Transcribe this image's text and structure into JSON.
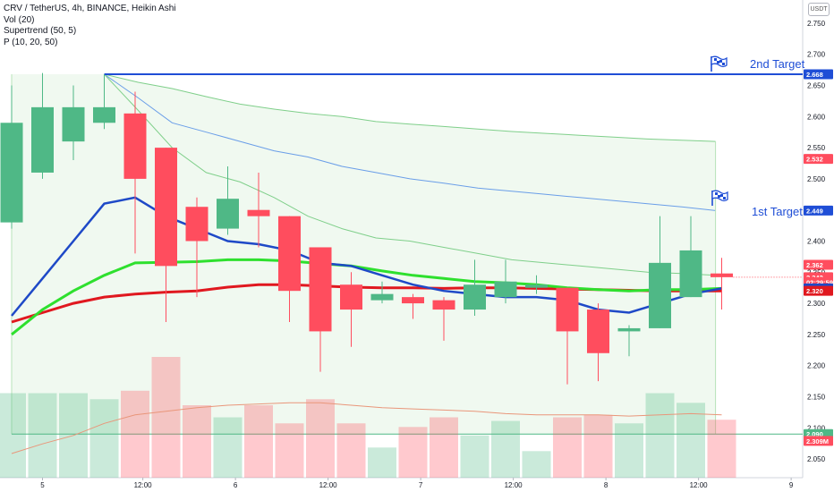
{
  "legend": {
    "line1": "CRV / TetherUS, 4h, BINANCE, Heikin Ashi",
    "line2": "Vol (20)",
    "line3": "Supertrend (50, 5)",
    "line4": "P (10, 20, 50)"
  },
  "currency_box": "USDT",
  "targets": [
    {
      "label": "2nd Target",
      "price": 2.668
    },
    {
      "label": "1st Target",
      "price": 2.449
    }
  ],
  "colors": {
    "up": "#4fb886",
    "down": "#ff4d5e",
    "blue_line": "#1e49c7",
    "green_line": "#2ee02e",
    "red_line": "#e0181f",
    "target_line": "#1f4ed6",
    "band": "#e9f6e9"
  },
  "chart_data": {
    "type": "candlestick",
    "ylim": [
      2.03,
      2.77
    ],
    "y_ticks": [
      "2.750",
      "2.700",
      "2.650",
      "2.600",
      "2.550",
      "2.500",
      "2.450",
      "2.400",
      "2.350",
      "2.300",
      "2.250",
      "2.200",
      "2.150",
      "2.100",
      "2.050"
    ],
    "x_ticks": [
      {
        "i": 1,
        "label": "5"
      },
      {
        "i": 4.25,
        "label": "12:00"
      },
      {
        "i": 7.25,
        "label": "6"
      },
      {
        "i": 10.25,
        "label": "12:00"
      },
      {
        "i": 13.25,
        "label": "7"
      },
      {
        "i": 16.25,
        "label": "12:00"
      },
      {
        "i": 19.25,
        "label": "8"
      },
      {
        "i": 22.25,
        "label": "12:00"
      },
      {
        "i": 25.25,
        "label": "9"
      }
    ],
    "candles": [
      {
        "o": 2.43,
        "h": 2.65,
        "l": 2.42,
        "c": 2.59
      },
      {
        "o": 2.51,
        "h": 2.67,
        "l": 2.5,
        "c": 2.615
      },
      {
        "o": 2.56,
        "h": 2.65,
        "l": 2.53,
        "c": 2.615
      },
      {
        "o": 2.59,
        "h": 2.668,
        "l": 2.58,
        "c": 2.615
      },
      {
        "o": 2.605,
        "h": 2.64,
        "l": 2.38,
        "c": 2.5
      },
      {
        "o": 2.55,
        "h": 2.55,
        "l": 2.27,
        "c": 2.36
      },
      {
        "o": 2.455,
        "h": 2.47,
        "l": 2.31,
        "c": 2.4
      },
      {
        "o": 2.42,
        "h": 2.52,
        "l": 2.41,
        "c": 2.468
      },
      {
        "o": 2.45,
        "h": 2.51,
        "l": 2.39,
        "c": 2.44
      },
      {
        "o": 2.44,
        "h": 2.44,
        "l": 2.27,
        "c": 2.32
      },
      {
        "o": 2.39,
        "h": 2.39,
        "l": 2.19,
        "c": 2.255
      },
      {
        "o": 2.33,
        "h": 2.35,
        "l": 2.23,
        "c": 2.29
      },
      {
        "o": 2.305,
        "h": 2.335,
        "l": 2.3,
        "c": 2.315
      },
      {
        "o": 2.31,
        "h": 2.315,
        "l": 2.275,
        "c": 2.3
      },
      {
        "o": 2.305,
        "h": 2.31,
        "l": 2.24,
        "c": 2.29
      },
      {
        "o": 2.29,
        "h": 2.37,
        "l": 2.28,
        "c": 2.33
      },
      {
        "o": 2.31,
        "h": 2.37,
        "l": 2.3,
        "c": 2.335
      },
      {
        "o": 2.325,
        "h": 2.345,
        "l": 2.315,
        "c": 2.33
      },
      {
        "o": 2.325,
        "h": 2.325,
        "l": 2.17,
        "c": 2.255
      },
      {
        "o": 2.29,
        "h": 2.3,
        "l": 2.175,
        "c": 2.22
      },
      {
        "o": 2.255,
        "h": 2.265,
        "l": 2.215,
        "c": 2.26
      },
      {
        "o": 2.26,
        "h": 2.44,
        "l": 2.26,
        "c": 2.365
      },
      {
        "o": 2.31,
        "h": 2.44,
        "l": 2.31,
        "c": 2.385
      },
      {
        "o": 2.348,
        "h": 2.373,
        "l": 2.29,
        "c": 2.342
      }
    ],
    "volume": [
      {
        "v": 0.7,
        "up": true
      },
      {
        "v": 0.7,
        "up": true
      },
      {
        "v": 0.7,
        "up": true
      },
      {
        "v": 0.65,
        "up": true
      },
      {
        "v": 0.72,
        "up": false
      },
      {
        "v": 1.0,
        "up": false
      },
      {
        "v": 0.6,
        "up": false
      },
      {
        "v": 0.5,
        "up": true
      },
      {
        "v": 0.6,
        "up": false
      },
      {
        "v": 0.45,
        "up": false
      },
      {
        "v": 0.65,
        "up": false
      },
      {
        "v": 0.45,
        "up": false
      },
      {
        "v": 0.25,
        "up": true
      },
      {
        "v": 0.42,
        "up": false
      },
      {
        "v": 0.5,
        "up": false
      },
      {
        "v": 0.35,
        "up": true
      },
      {
        "v": 0.47,
        "up": true
      },
      {
        "v": 0.22,
        "up": true
      },
      {
        "v": 0.5,
        "up": false
      },
      {
        "v": 0.52,
        "up": false
      },
      {
        "v": 0.45,
        "up": true
      },
      {
        "v": 0.7,
        "up": true
      },
      {
        "v": 0.62,
        "up": true
      },
      {
        "v": 0.48,
        "up": false
      }
    ],
    "volume_ma": [
      0.2,
      0.28,
      0.35,
      0.45,
      0.52,
      0.55,
      0.58,
      0.6,
      0.61,
      0.62,
      0.62,
      0.6,
      0.58,
      0.57,
      0.56,
      0.55,
      0.53,
      0.52,
      0.52,
      0.52,
      0.51,
      0.52,
      0.53,
      0.52
    ],
    "blue_line": [
      2.28,
      2.34,
      2.4,
      2.46,
      2.47,
      2.44,
      2.42,
      2.4,
      2.395,
      2.385,
      2.365,
      2.36,
      2.345,
      2.33,
      2.32,
      2.315,
      2.31,
      2.31,
      2.305,
      2.29,
      2.285,
      2.3,
      2.315,
      2.324
    ],
    "green_line": [
      2.25,
      2.29,
      2.32,
      2.345,
      2.365,
      2.366,
      2.367,
      2.37,
      2.37,
      2.368,
      2.364,
      2.36,
      2.352,
      2.345,
      2.34,
      2.335,
      2.333,
      2.33,
      2.325,
      2.322,
      2.32,
      2.322,
      2.322,
      2.324
    ],
    "red_line": [
      2.27,
      2.285,
      2.3,
      2.31,
      2.315,
      2.318,
      2.32,
      2.326,
      2.33,
      2.33,
      2.328,
      2.326,
      2.325,
      2.325,
      2.324,
      2.325,
      2.325,
      2.324,
      2.323,
      2.322,
      2.321,
      2.32,
      2.32,
      2.32
    ],
    "band_top": [
      2.668,
      2.655,
      2.645,
      2.632,
      2.62,
      2.612,
      2.605,
      2.6,
      2.592,
      2.588,
      2.584,
      2.58,
      2.576,
      2.573,
      2.57,
      2.567,
      2.564,
      2.562,
      2.56
    ],
    "band_mid": [
      2.668,
      2.63,
      2.59,
      2.575,
      2.56,
      2.545,
      2.535,
      2.52,
      2.51,
      2.5,
      2.493,
      2.485,
      2.48,
      2.475,
      2.47,
      2.465,
      2.46,
      2.455,
      2.449
    ],
    "band_low": [
      2.668,
      2.61,
      2.55,
      2.51,
      2.495,
      2.47,
      2.44,
      2.42,
      2.405,
      2.4,
      2.39,
      2.38,
      2.37,
      2.365,
      2.36,
      2.355,
      2.35,
      2.348,
      2.345
    ],
    "price_labels": [
      {
        "text": "2.668",
        "price": 2.668,
        "bg": "#1f4ed6"
      },
      {
        "text": "2.532",
        "price": 2.532,
        "bg": "#ff4d5e"
      },
      {
        "text": "2.449",
        "price": 2.449,
        "bg": "#1f4ed6"
      },
      {
        "text": "2.362",
        "price": 2.362,
        "bg": "#ff4d5e"
      },
      {
        "text": "2.342",
        "price": 2.342,
        "bg": "#ff4d5e"
      },
      {
        "text": "02:29:59",
        "price": 2.334,
        "bg": "#ff4d5e"
      },
      {
        "text": "2.324",
        "price": 2.324,
        "bg": "#1e49c7"
      },
      {
        "text": "2.320",
        "price": 2.32,
        "bg": "#e0181f"
      },
      {
        "text": "2.090",
        "price": 2.09,
        "bg": "#4fb886"
      },
      {
        "text": "2.309M",
        "price": 2.079,
        "bg": "#ff4d5e"
      }
    ]
  }
}
